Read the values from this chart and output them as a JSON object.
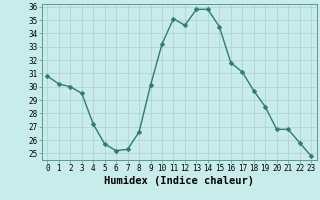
{
  "x": [
    0,
    1,
    2,
    3,
    4,
    5,
    6,
    7,
    8,
    9,
    10,
    11,
    12,
    13,
    14,
    15,
    16,
    17,
    18,
    19,
    20,
    21,
    22,
    23
  ],
  "y": [
    30.8,
    30.2,
    30.0,
    29.5,
    27.2,
    25.7,
    25.2,
    25.3,
    26.6,
    30.1,
    33.2,
    35.1,
    34.6,
    35.8,
    35.8,
    34.5,
    31.8,
    31.1,
    29.7,
    28.5,
    26.8,
    26.8,
    25.8,
    24.8
  ],
  "line_color": "#2d7d6f",
  "marker": "D",
  "marker_size": 2.5,
  "bg_color": "#c8ecea",
  "grid_color": "#b0cece",
  "xlabel": "Humidex (Indice chaleur)",
  "ylim": [
    24.5,
    36.2
  ],
  "xlim": [
    -0.5,
    23.5
  ],
  "yticks": [
    25,
    26,
    27,
    28,
    29,
    30,
    31,
    32,
    33,
    34,
    35,
    36
  ],
  "xticks": [
    0,
    1,
    2,
    3,
    4,
    5,
    6,
    7,
    8,
    9,
    10,
    11,
    12,
    13,
    14,
    15,
    16,
    17,
    18,
    19,
    20,
    21,
    22,
    23
  ],
  "tick_label_fontsize": 5.5,
  "xlabel_fontsize": 7.5
}
